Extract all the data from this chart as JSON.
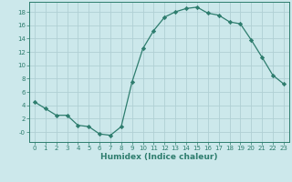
{
  "x": [
    0,
    1,
    2,
    3,
    4,
    5,
    6,
    7,
    8,
    9,
    10,
    11,
    12,
    13,
    14,
    15,
    16,
    17,
    18,
    19,
    20,
    21,
    22,
    23
  ],
  "y": [
    4.5,
    3.5,
    2.5,
    2.5,
    1.0,
    0.8,
    -0.3,
    -0.5,
    0.8,
    7.5,
    12.5,
    15.2,
    17.2,
    18.0,
    18.5,
    18.7,
    17.8,
    17.5,
    16.5,
    16.2,
    13.8,
    11.2,
    8.5,
    7.2
  ],
  "line_color": "#2e7d6e",
  "marker": "D",
  "markersize": 2.2,
  "bg_color": "#cce8eb",
  "grid_color": "#b0cfd4",
  "xlabel": "Humidex (Indice chaleur)",
  "xlim": [
    -0.5,
    23.5
  ],
  "ylim": [
    -1.5,
    19.5
  ],
  "yticks": [
    0,
    2,
    4,
    6,
    8,
    10,
    12,
    14,
    16,
    18
  ],
  "ytick_labels": [
    "-0",
    "2",
    "4",
    "6",
    "8",
    "10",
    "12",
    "14",
    "16",
    "18"
  ],
  "xticks": [
    0,
    1,
    2,
    3,
    4,
    5,
    6,
    7,
    8,
    9,
    10,
    11,
    12,
    13,
    14,
    15,
    16,
    17,
    18,
    19,
    20,
    21,
    22,
    23
  ]
}
